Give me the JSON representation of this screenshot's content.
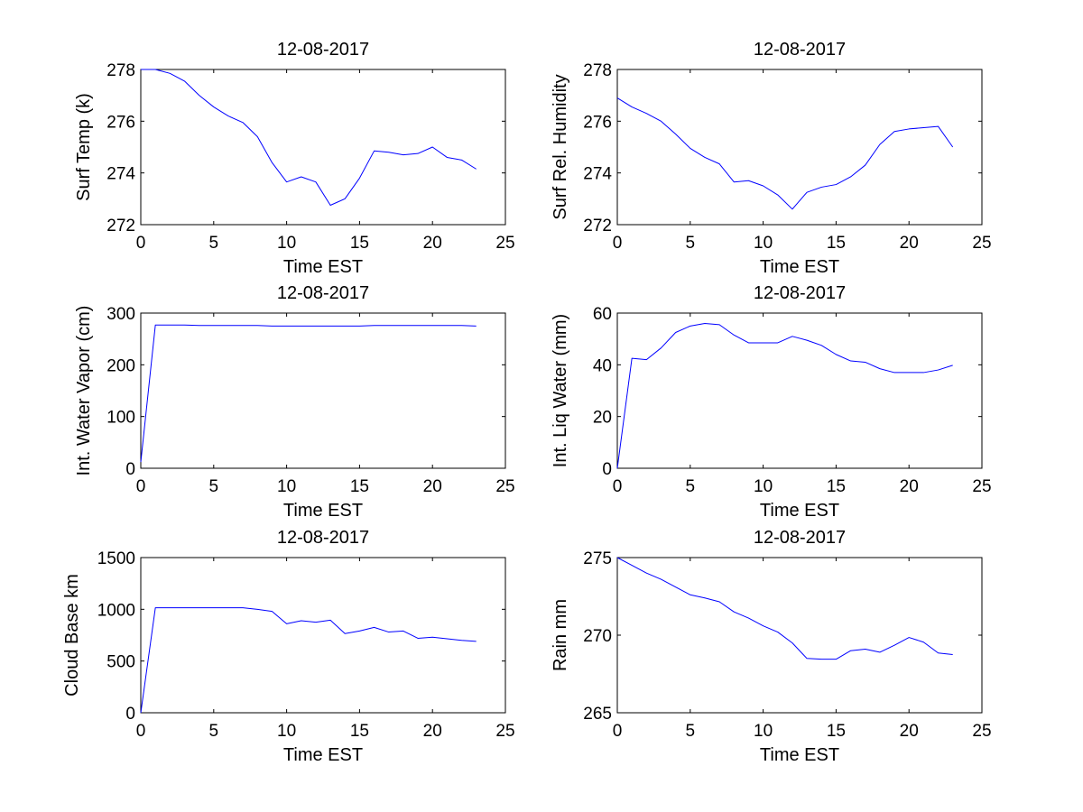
{
  "figure": {
    "background": "#ffffff",
    "line_color": "#0000ff"
  },
  "chart_data": [
    {
      "type": "line",
      "title": "12-08-2017",
      "xlabel": "Time EST",
      "ylabel": "Surf Temp (k)",
      "xlim": [
        0,
        25
      ],
      "ylim": [
        272,
        278
      ],
      "xticks": [
        "0",
        "5",
        "10",
        "15",
        "20",
        "25"
      ],
      "yticks": [
        "272",
        "274",
        "276",
        "278"
      ],
      "series": [
        {
          "name": "Surf Temp",
          "x": [
            0,
            1,
            2,
            3,
            4,
            5,
            6,
            7,
            8,
            9,
            10,
            11,
            12,
            13,
            14,
            15,
            16,
            17,
            18,
            19,
            20,
            21,
            22,
            23
          ],
          "y": [
            278.0,
            278.0,
            277.85,
            277.55,
            277.0,
            276.55,
            276.2,
            275.95,
            275.4,
            274.4,
            273.65,
            273.85,
            273.65,
            272.75,
            273.0,
            273.8,
            274.85,
            274.8,
            274.7,
            274.75,
            275.0,
            274.6,
            274.5,
            274.15
          ]
        }
      ]
    },
    {
      "type": "line",
      "title": "12-08-2017",
      "xlabel": "Time EST",
      "ylabel": "Surf Rel. Humidity",
      "xlim": [
        0,
        25
      ],
      "ylim": [
        272,
        278
      ],
      "xticks": [
        "0",
        "5",
        "10",
        "15",
        "20",
        "25"
      ],
      "yticks": [
        "272",
        "274",
        "276",
        "278"
      ],
      "series": [
        {
          "name": "Surf Rel. Humidity",
          "x": [
            0,
            1,
            2,
            3,
            4,
            5,
            6,
            7,
            8,
            9,
            10,
            11,
            12,
            13,
            14,
            15,
            16,
            17,
            18,
            19,
            20,
            21,
            22,
            23
          ],
          "y": [
            276.9,
            276.55,
            276.3,
            276.0,
            275.5,
            274.95,
            274.6,
            274.35,
            273.65,
            273.7,
            273.5,
            273.15,
            272.6,
            273.25,
            273.45,
            273.55,
            273.85,
            274.3,
            275.1,
            275.6,
            275.7,
            275.75,
            275.8,
            275.0
          ]
        }
      ]
    },
    {
      "type": "line",
      "title": "12-08-2017",
      "xlabel": "Time EST",
      "ylabel": "Int. Water Vapor (cm)",
      "xlim": [
        0,
        25
      ],
      "ylim": [
        0,
        300
      ],
      "xticks": [
        "0",
        "5",
        "10",
        "15",
        "20",
        "25"
      ],
      "yticks": [
        "0",
        "100",
        "200",
        "300"
      ],
      "series": [
        {
          "name": "Int. Water Vapor",
          "x": [
            0,
            1,
            2,
            3,
            4,
            5,
            6,
            7,
            8,
            9,
            10,
            11,
            12,
            13,
            14,
            15,
            16,
            17,
            18,
            19,
            20,
            21,
            22,
            23
          ],
          "y": [
            12,
            277,
            277,
            277,
            276,
            276,
            276,
            276,
            276,
            275,
            275,
            275,
            275,
            275,
            275,
            275,
            276,
            276,
            276,
            276,
            276,
            276,
            276,
            275
          ]
        }
      ]
    },
    {
      "type": "line",
      "title": "12-08-2017",
      "xlabel": "Time EST",
      "ylabel": "Int. Liq Water (mm)",
      "xlim": [
        0,
        25
      ],
      "ylim": [
        0,
        60
      ],
      "xticks": [
        "0",
        "5",
        "10",
        "15",
        "20",
        "25"
      ],
      "yticks": [
        "0",
        "20",
        "40",
        "60"
      ],
      "series": [
        {
          "name": "Int. Liq Water",
          "x": [
            0,
            1,
            2,
            3,
            4,
            5,
            6,
            7,
            8,
            9,
            10,
            11,
            12,
            13,
            14,
            15,
            16,
            17,
            18,
            19,
            20,
            21,
            22,
            23
          ],
          "y": [
            0,
            42.5,
            42,
            46.5,
            52.5,
            55,
            56,
            55.5,
            51.5,
            48.5,
            48.5,
            48.5,
            51,
            49.5,
            47.5,
            44,
            41.5,
            41,
            38.5,
            37,
            37,
            37,
            38,
            39.8
          ]
        }
      ]
    },
    {
      "type": "line",
      "title": "12-08-2017",
      "xlabel": "Time EST",
      "ylabel": "Cloud Base km",
      "xlim": [
        0,
        25
      ],
      "ylim": [
        0,
        1500
      ],
      "xticks": [
        "0",
        "5",
        "10",
        "15",
        "20",
        "25"
      ],
      "yticks": [
        "0",
        "500",
        "1000",
        "1500"
      ],
      "series": [
        {
          "name": "Cloud Base",
          "x": [
            0,
            1,
            2,
            3,
            4,
            5,
            6,
            7,
            8,
            9,
            10,
            11,
            12,
            13,
            14,
            15,
            16,
            17,
            18,
            19,
            20,
            21,
            22,
            23
          ],
          "y": [
            0,
            1015,
            1015,
            1015,
            1015,
            1015,
            1015,
            1015,
            1000,
            980,
            860,
            890,
            875,
            895,
            765,
            790,
            825,
            780,
            790,
            720,
            730,
            715,
            700,
            690
          ]
        }
      ]
    },
    {
      "type": "line",
      "title": "12-08-2017",
      "xlabel": "Time EST",
      "ylabel": "Rain mm",
      "xlim": [
        0,
        25
      ],
      "ylim": [
        265,
        275
      ],
      "xticks": [
        "0",
        "5",
        "10",
        "15",
        "20",
        "25"
      ],
      "yticks": [
        "265",
        "270",
        "275"
      ],
      "series": [
        {
          "name": "Rain",
          "x": [
            0,
            1,
            2,
            3,
            4,
            5,
            6,
            7,
            8,
            9,
            10,
            11,
            12,
            13,
            14,
            15,
            16,
            17,
            18,
            19,
            20,
            21,
            22,
            23
          ],
          "y": [
            275.0,
            274.5,
            274.0,
            273.6,
            273.1,
            272.6,
            272.4,
            272.15,
            271.5,
            271.1,
            270.6,
            270.2,
            269.5,
            268.5,
            268.45,
            268.45,
            269.0,
            269.1,
            268.9,
            269.35,
            269.85,
            269.55,
            268.85,
            268.75
          ]
        }
      ]
    }
  ]
}
